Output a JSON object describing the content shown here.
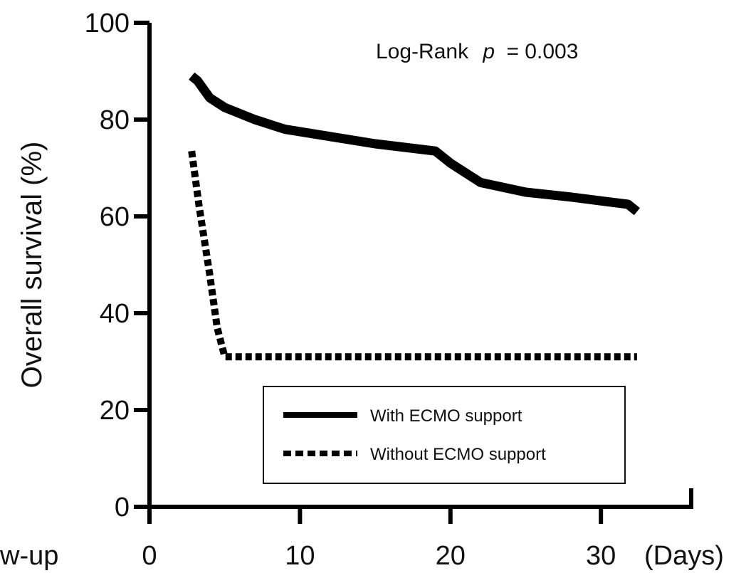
{
  "chart_data": {
    "type": "line",
    "ylabel": "Overall survival (%)",
    "xlabel_left": "w-up",
    "x_unit_label": "(Days)",
    "xlim": [
      0,
      36
    ],
    "ylim": [
      0,
      100
    ],
    "x_ticks": [
      0,
      10,
      20,
      30
    ],
    "y_ticks": [
      0,
      20,
      40,
      60,
      80,
      100
    ],
    "annotation": {
      "prefix": "Log-Rank",
      "p_symbol": "p",
      "value": "= 0.003"
    },
    "legend_position": "bottom-right",
    "series": [
      {
        "name": "With ECMO support",
        "style": "solid",
        "color": "#000000",
        "points": [
          [
            2.8,
            89
          ],
          [
            3.2,
            88
          ],
          [
            4,
            84.5
          ],
          [
            5,
            82.5
          ],
          [
            7,
            80
          ],
          [
            9,
            78
          ],
          [
            12,
            76.5
          ],
          [
            15,
            75
          ],
          [
            19,
            73.5
          ],
          [
            20,
            71
          ],
          [
            22,
            67
          ],
          [
            25,
            65
          ],
          [
            28,
            64
          ],
          [
            30.5,
            63
          ],
          [
            31.8,
            62.5
          ],
          [
            32.4,
            61
          ]
        ]
      },
      {
        "name": "Without ECMO support",
        "style": "dashed",
        "color": "#000000",
        "points": [
          [
            2.8,
            73.5
          ],
          [
            3.3,
            62
          ],
          [
            4,
            48
          ],
          [
            4.5,
            37
          ],
          [
            5,
            31
          ],
          [
            32.4,
            31
          ]
        ]
      }
    ]
  }
}
